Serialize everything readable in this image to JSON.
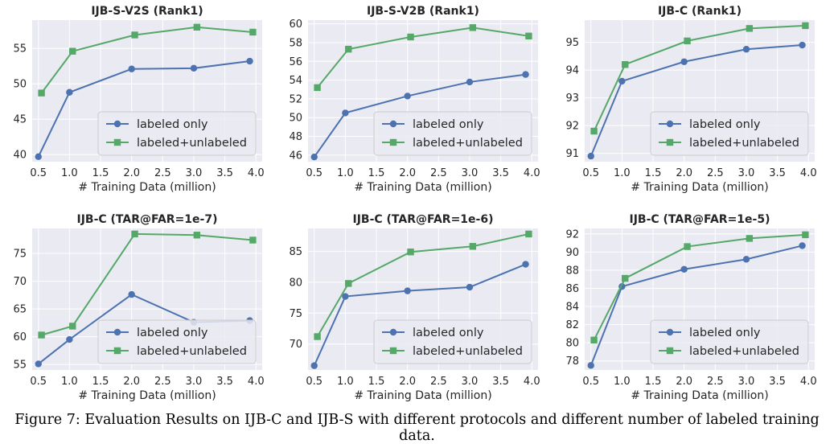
{
  "caption": "Figure 7: Evaluation Results on IJB-C and IJB-S with different protocols and different number of labeled training data.",
  "colors": {
    "labeled_only": "#4c72b0",
    "labeled_unlabeled": "#55a868",
    "background": "#eaeaf2",
    "grid": "#ffffff"
  },
  "legend_placement": "lower-right",
  "grid": true,
  "chart_data": [
    {
      "type": "line",
      "title": "IJB-S-V2S (Rank1)",
      "xlabel": "# Training Data (million)",
      "ylabel": "",
      "xlim": [
        0.4,
        4.1
      ],
      "ylim": [
        39,
        59
      ],
      "xticks": [
        0.5,
        1.0,
        1.5,
        2.0,
        2.5,
        3.0,
        3.5,
        4.0
      ],
      "xtick_labels": [
        "0.5",
        "1.0",
        "1.5",
        "2.0",
        "2.5",
        "3.0",
        "3.5",
        "4.0"
      ],
      "yticks": [
        40,
        45,
        50,
        55
      ],
      "ytick_labels": [
        "40",
        "45",
        "50",
        "55"
      ],
      "series": [
        {
          "name": "labeled only",
          "marker": "circle",
          "x": [
            0.5,
            1.0,
            2.0,
            3.0,
            3.9
          ],
          "y": [
            39.7,
            48.8,
            52.1,
            52.2,
            53.2
          ]
        },
        {
          "name": "labeled+unlabeled",
          "marker": "square",
          "x": [
            0.55,
            1.05,
            2.05,
            3.05,
            3.95
          ],
          "y": [
            48.7,
            54.6,
            56.9,
            58.0,
            57.3
          ]
        }
      ]
    },
    {
      "type": "line",
      "title": "IJB-S-V2B (Rank1)",
      "xlabel": "# Training Data (million)",
      "ylabel": "",
      "xlim": [
        0.4,
        4.1
      ],
      "ylim": [
        45.3,
        60.4
      ],
      "xticks": [
        0.5,
        1.0,
        1.5,
        2.0,
        2.5,
        3.0,
        3.5,
        4.0
      ],
      "xtick_labels": [
        "0.5",
        "1.0",
        "1.5",
        "2.0",
        "2.5",
        "3.0",
        "3.5",
        "4.0"
      ],
      "yticks": [
        46,
        48,
        50,
        52,
        54,
        56,
        58,
        60
      ],
      "ytick_labels": [
        "46",
        "48",
        "50",
        "52",
        "54",
        "56",
        "58",
        "60"
      ],
      "series": [
        {
          "name": "labeled only",
          "marker": "circle",
          "x": [
            0.5,
            1.0,
            2.0,
            3.0,
            3.9
          ],
          "y": [
            45.8,
            50.5,
            52.3,
            53.8,
            54.6
          ]
        },
        {
          "name": "labeled+unlabeled",
          "marker": "square",
          "x": [
            0.55,
            1.05,
            2.05,
            3.05,
            3.95
          ],
          "y": [
            53.2,
            57.3,
            58.6,
            59.6,
            58.7
          ]
        }
      ]
    },
    {
      "type": "line",
      "title": "IJB-C (Rank1)",
      "xlabel": "# Training Data (million)",
      "ylabel": "",
      "xlim": [
        0.4,
        4.1
      ],
      "ylim": [
        90.7,
        95.8
      ],
      "xticks": [
        0.5,
        1.0,
        1.5,
        2.0,
        2.5,
        3.0,
        3.5,
        4.0
      ],
      "xtick_labels": [
        "0.5",
        "1.0",
        "1.5",
        "2.0",
        "2.5",
        "3.0",
        "3.5",
        "4.0"
      ],
      "yticks": [
        91,
        92,
        93,
        94,
        95
      ],
      "ytick_labels": [
        "91",
        "92",
        "93",
        "94",
        "95"
      ],
      "series": [
        {
          "name": "labeled only",
          "marker": "circle",
          "x": [
            0.5,
            1.0,
            2.0,
            3.0,
            3.9
          ],
          "y": [
            90.9,
            93.6,
            94.3,
            94.75,
            94.9
          ]
        },
        {
          "name": "labeled+unlabeled",
          "marker": "square",
          "x": [
            0.55,
            1.05,
            2.05,
            3.05,
            3.95
          ],
          "y": [
            91.8,
            94.2,
            95.05,
            95.5,
            95.6
          ]
        }
      ]
    },
    {
      "type": "line",
      "title": "IJB-C (TAR@FAR=1e-7)",
      "xlabel": "# Training Data (million)",
      "ylabel": "",
      "xlim": [
        0.4,
        4.1
      ],
      "ylim": [
        54,
        79.5
      ],
      "xticks": [
        0.5,
        1.0,
        1.5,
        2.0,
        2.5,
        3.0,
        3.5,
        4.0
      ],
      "xtick_labels": [
        "0.5",
        "1.0",
        "1.5",
        "2.0",
        "2.5",
        "3.0",
        "3.5",
        "4.0"
      ],
      "yticks": [
        55,
        60,
        65,
        70,
        75
      ],
      "ytick_labels": [
        "55",
        "60",
        "65",
        "70",
        "75"
      ],
      "series": [
        {
          "name": "labeled only",
          "marker": "circle",
          "x": [
            0.5,
            1.0,
            2.0,
            3.0,
            3.9
          ],
          "y": [
            55.1,
            59.5,
            67.6,
            62.6,
            62.9
          ]
        },
        {
          "name": "labeled+unlabeled",
          "marker": "square",
          "x": [
            0.55,
            1.05,
            2.05,
            3.05,
            3.95
          ],
          "y": [
            60.3,
            61.9,
            78.5,
            78.3,
            77.4
          ]
        }
      ]
    },
    {
      "type": "line",
      "title": "IJB-C (TAR@FAR=1e-6)",
      "xlabel": "# Training Data (million)",
      "ylabel": "",
      "xlim": [
        0.4,
        4.1
      ],
      "ylim": [
        65.8,
        88.7
      ],
      "xticks": [
        0.5,
        1.0,
        1.5,
        2.0,
        2.5,
        3.0,
        3.5,
        4.0
      ],
      "xtick_labels": [
        "0.5",
        "1.0",
        "1.5",
        "2.0",
        "2.5",
        "3.0",
        "3.5",
        "4.0"
      ],
      "yticks": [
        70,
        75,
        80,
        85
      ],
      "ytick_labels": [
        "70",
        "75",
        "80",
        "85"
      ],
      "series": [
        {
          "name": "labeled only",
          "marker": "circle",
          "x": [
            0.5,
            1.0,
            2.0,
            3.0,
            3.9
          ],
          "y": [
            66.5,
            77.7,
            78.6,
            79.2,
            82.9
          ]
        },
        {
          "name": "labeled+unlabeled",
          "marker": "square",
          "x": [
            0.55,
            1.05,
            2.05,
            3.05,
            3.95
          ],
          "y": [
            71.2,
            79.8,
            84.9,
            85.8,
            87.8
          ]
        }
      ]
    },
    {
      "type": "line",
      "title": "IJB-C (TAR@FAR=1e-5)",
      "xlabel": "# Training Data (million)",
      "ylabel": "",
      "xlim": [
        0.4,
        4.1
      ],
      "ylim": [
        77,
        92.6
      ],
      "xticks": [
        0.5,
        1.0,
        1.5,
        2.0,
        2.5,
        3.0,
        3.5,
        4.0
      ],
      "xtick_labels": [
        "0.5",
        "1.0",
        "1.5",
        "2.0",
        "2.5",
        "3.0",
        "3.5",
        "4.0"
      ],
      "yticks": [
        78,
        80,
        82,
        84,
        86,
        88,
        90,
        92
      ],
      "ytick_labels": [
        "78",
        "80",
        "82",
        "84",
        "86",
        "88",
        "90",
        "92"
      ],
      "series": [
        {
          "name": "labeled only",
          "marker": "circle",
          "x": [
            0.5,
            1.0,
            2.0,
            3.0,
            3.9
          ],
          "y": [
            77.5,
            86.2,
            88.1,
            89.2,
            90.7
          ]
        },
        {
          "name": "labeled+unlabeled",
          "marker": "square",
          "x": [
            0.55,
            1.05,
            2.05,
            3.05,
            3.95
          ],
          "y": [
            80.3,
            87.1,
            90.6,
            91.5,
            91.9
          ]
        }
      ]
    }
  ]
}
